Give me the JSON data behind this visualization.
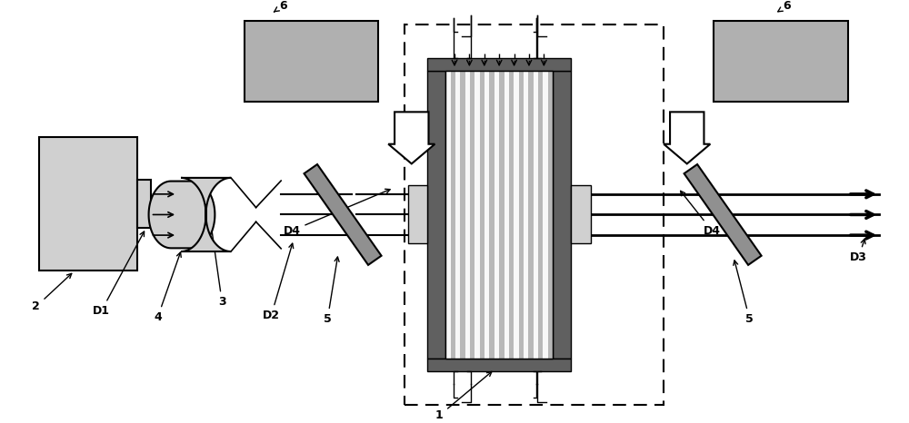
{
  "bg_color": "#ffffff",
  "lc": "#000000",
  "gray_box_color": "#b0b0b0",
  "dark_gray": "#606060",
  "mid_gray": "#909090",
  "light_gray": "#d0d0d0",
  "stripe_white": "#f8f8f8",
  "stripe_gray": "#b8b8b8",
  "beam_lw": 2.0,
  "xlim": [
    0,
    1
  ],
  "ylim": [
    0,
    0.466
  ],
  "figsize": [
    10.0,
    4.66
  ],
  "dpi": 100
}
